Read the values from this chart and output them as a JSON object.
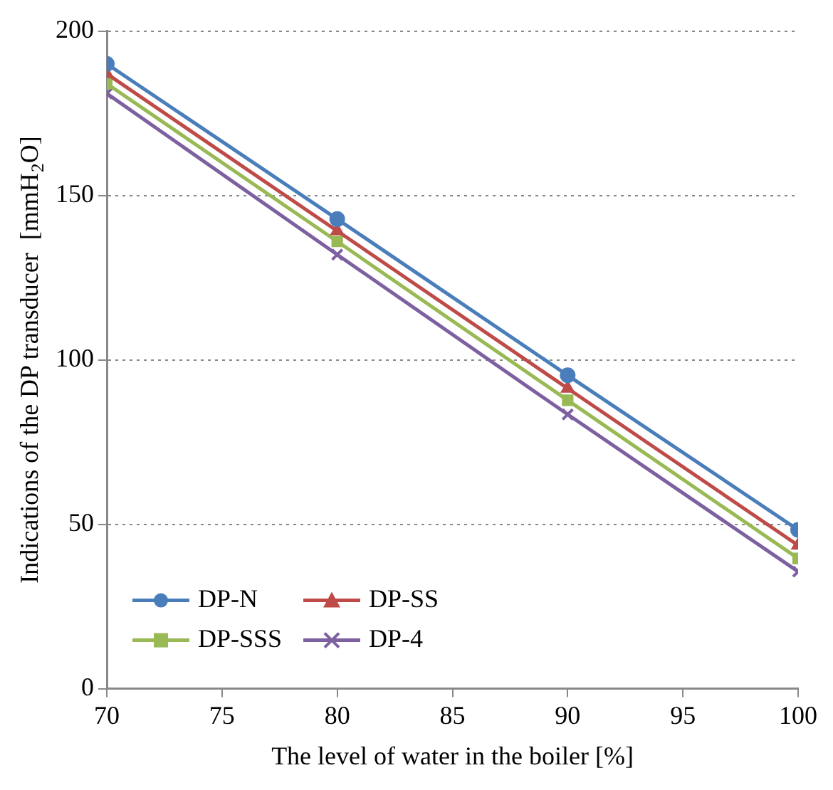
{
  "chart_data": {
    "type": "line",
    "xlabel": "The level of water in the boiler [%]",
    "ylabel": "Indications of the DP transducer  [mmH$_{2}$O]",
    "x": [
      70,
      80,
      90,
      100
    ],
    "xlim": [
      70,
      100
    ],
    "xticks": [
      70,
      75,
      80,
      85,
      90,
      95,
      100
    ],
    "ylim": [
      0,
      200
    ],
    "yticks": [
      0,
      50,
      100,
      150,
      200
    ],
    "grid": "y",
    "legend": "bottom left",
    "line_style": "solid",
    "series": [
      {
        "name": "DP-N",
        "color": "#4a7ebb",
        "marker": "circle",
        "values": [
          190,
          142.8,
          95.3,
          48.3
        ]
      },
      {
        "name": "DP-SS",
        "color": "#be4b48",
        "marker": "triangle",
        "values": [
          187,
          139.2,
          91.3,
          43.6
        ]
      },
      {
        "name": "DP-SSS",
        "color": "#98b954",
        "marker": "square",
        "values": [
          184,
          136,
          87.7,
          39.6
        ]
      },
      {
        "name": "DP-4",
        "color": "#7d60a0",
        "marker": "cross",
        "values": [
          181,
          132,
          83.4,
          35.6
        ]
      }
    ]
  }
}
